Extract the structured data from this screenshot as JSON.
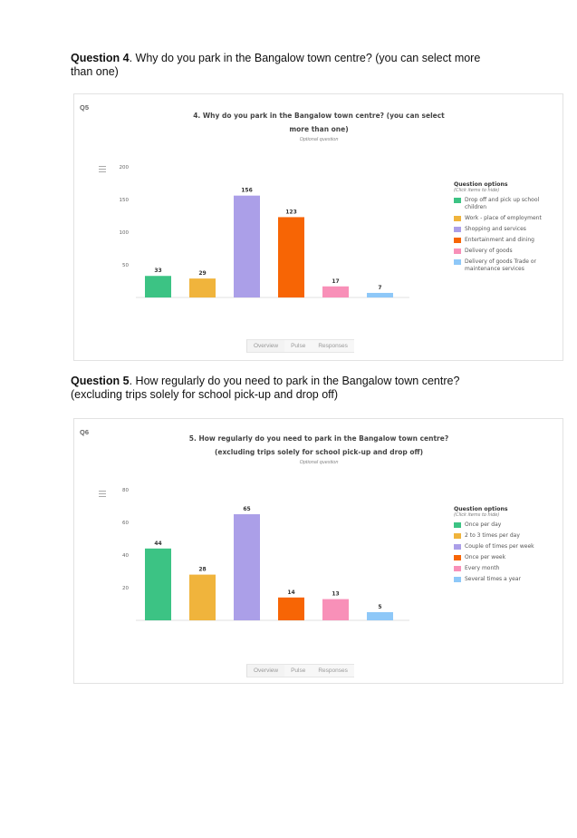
{
  "questions": [
    {
      "heading_bold": "Question 4",
      "heading_text": ". Why do you park in the Bangalow town centre? (you can select more than one)",
      "card_label": "Q5",
      "card_title": "4. Why do you park in the Bangalow town centre? (you can select more than one)",
      "card_subtitle": "Optional question",
      "tabs": [
        "Overview",
        "Pulse",
        "Responses"
      ],
      "legend_title": "Question options",
      "legend_sub": "(Click items to hide)",
      "colors": [
        "#3cc384",
        "#f0b43c",
        "#ab9fe8",
        "#f76505",
        "#f890b8",
        "#8ec8f8"
      ]
    },
    {
      "heading_bold": "Question 5",
      "heading_text": ". How regularly do you need to park in the Bangalow town centre? (excluding trips solely for school pick-up and drop off)",
      "card_label": "Q6",
      "card_title": "5. How regularly do you need to park in the Bangalow town centre? (excluding trips solely for school pick-up and drop off)",
      "card_subtitle": "Optional question",
      "tabs": [
        "Overview",
        "Pulse",
        "Responses"
      ],
      "legend_title": "Question options",
      "legend_sub": "(Click items to hide)",
      "colors": [
        "#3cc384",
        "#f0b43c",
        "#ab9fe8",
        "#f76505",
        "#f890b8",
        "#8ec8f8"
      ]
    }
  ],
  "chart_data": [
    {
      "type": "bar",
      "categories": [
        "Drop off and pick up school children",
        "Work - place of employment",
        "Shopping and services",
        "Entertainment and dining",
        "Delivery of goods",
        "Delivery of goods Trade or maintenance services"
      ],
      "values": [
        33,
        29,
        156,
        123,
        17,
        7
      ],
      "yticks": [
        200,
        150,
        100,
        50
      ],
      "ylim": [
        0,
        200
      ],
      "legend": "right"
    },
    {
      "type": "bar",
      "categories": [
        "Once per day",
        "2 to 3 times per day",
        "Couple of times per week",
        "Once per week",
        "Every month",
        "Several times a year"
      ],
      "values": [
        44,
        28,
        65,
        14,
        13,
        5
      ],
      "yticks": [
        80,
        60,
        40,
        20
      ],
      "ylim": [
        0,
        80
      ],
      "legend": "right"
    }
  ]
}
